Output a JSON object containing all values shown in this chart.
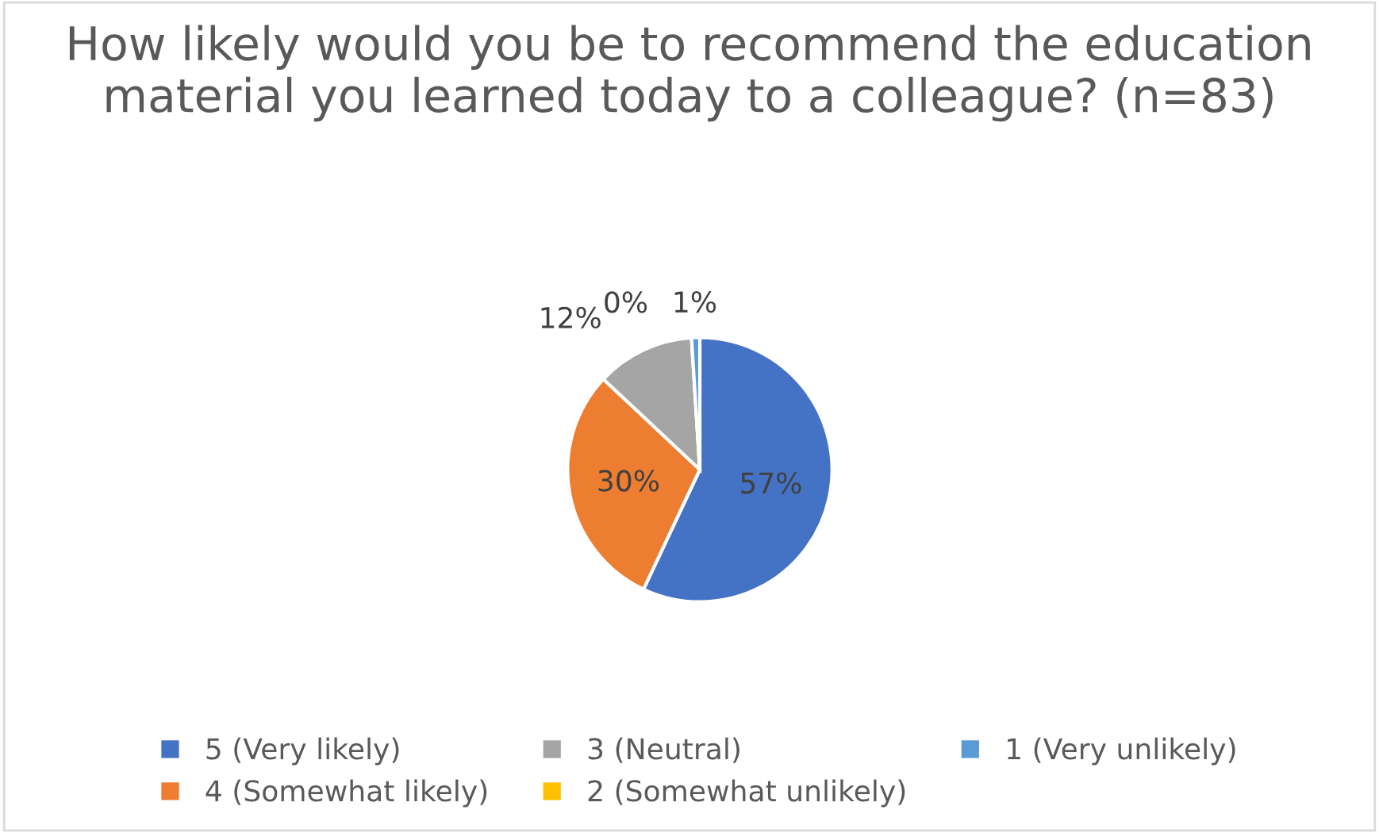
{
  "chart_data": {
    "type": "pie",
    "title": "How likely would you be to recommend the education material you learned today to a colleague? (n=83)",
    "categories": [
      "5 (Very likely)",
      "4 (Somewhat likely)",
      "3 (Neutral)",
      "2 (Somewhat unlikely)",
      "1 (Very unlikely)"
    ],
    "values": [
      57,
      30,
      12,
      0,
      1
    ],
    "colors": [
      "#4472c4",
      "#ed7d31",
      "#a5a5a5",
      "#ffc000",
      "#5b9bd5"
    ],
    "value_labels": [
      "57%",
      "30%",
      "12%",
      "0%",
      "1%"
    ],
    "legend": "bottom"
  }
}
